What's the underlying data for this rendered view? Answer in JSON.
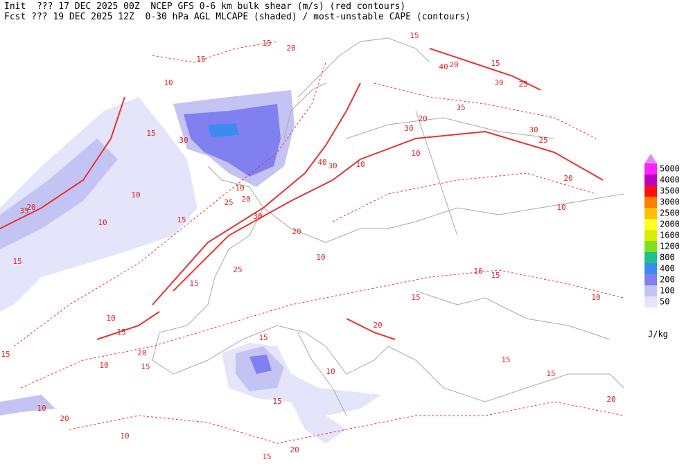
{
  "header": {
    "line1": "Init  ??? 17 DEC 2025 00Z  NCEP GFS 0-6 km bulk shear (m/s) (red contours)",
    "line2": "Fcst ??? 19 DEC 2025 12Z  0-30 hPa AGL MLCAPE (shaded) / most-unstable CAPE (contours)"
  },
  "legend": {
    "levels": [
      50,
      100,
      200,
      400,
      800,
      1200,
      1600,
      2000,
      2500,
      3000,
      3500,
      4000,
      5000
    ],
    "colors": [
      "#e4e4fa",
      "#c4c4f4",
      "#8080f0",
      "#3c8cf0",
      "#20c08c",
      "#80e020",
      "#d8f000",
      "#ffff20",
      "#ffc000",
      "#ff8000",
      "#ff1010",
      "#c000c0",
      "#ff20ff"
    ],
    "extend_color": "#e088f0",
    "unit": "J/kg"
  },
  "map": {
    "contour_labels": [
      "15",
      "20",
      "15",
      "10",
      "15",
      "30",
      "10",
      "10",
      "20",
      "35",
      "25",
      "20",
      "10",
      "30",
      "25",
      "20",
      "30",
      "40",
      "10",
      "10",
      "30",
      "20",
      "35",
      "30",
      "25",
      "20",
      "10",
      "20",
      "15",
      "30",
      "25",
      "15",
      "40",
      "10",
      "15",
      "15",
      "20",
      "10",
      "20",
      "15",
      "15",
      "10",
      "15",
      "20",
      "10",
      "10",
      "20",
      "15",
      "15",
      "15",
      "10",
      "20",
      "15",
      "15",
      "10",
      "15",
      "15",
      "10",
      "15"
    ]
  }
}
